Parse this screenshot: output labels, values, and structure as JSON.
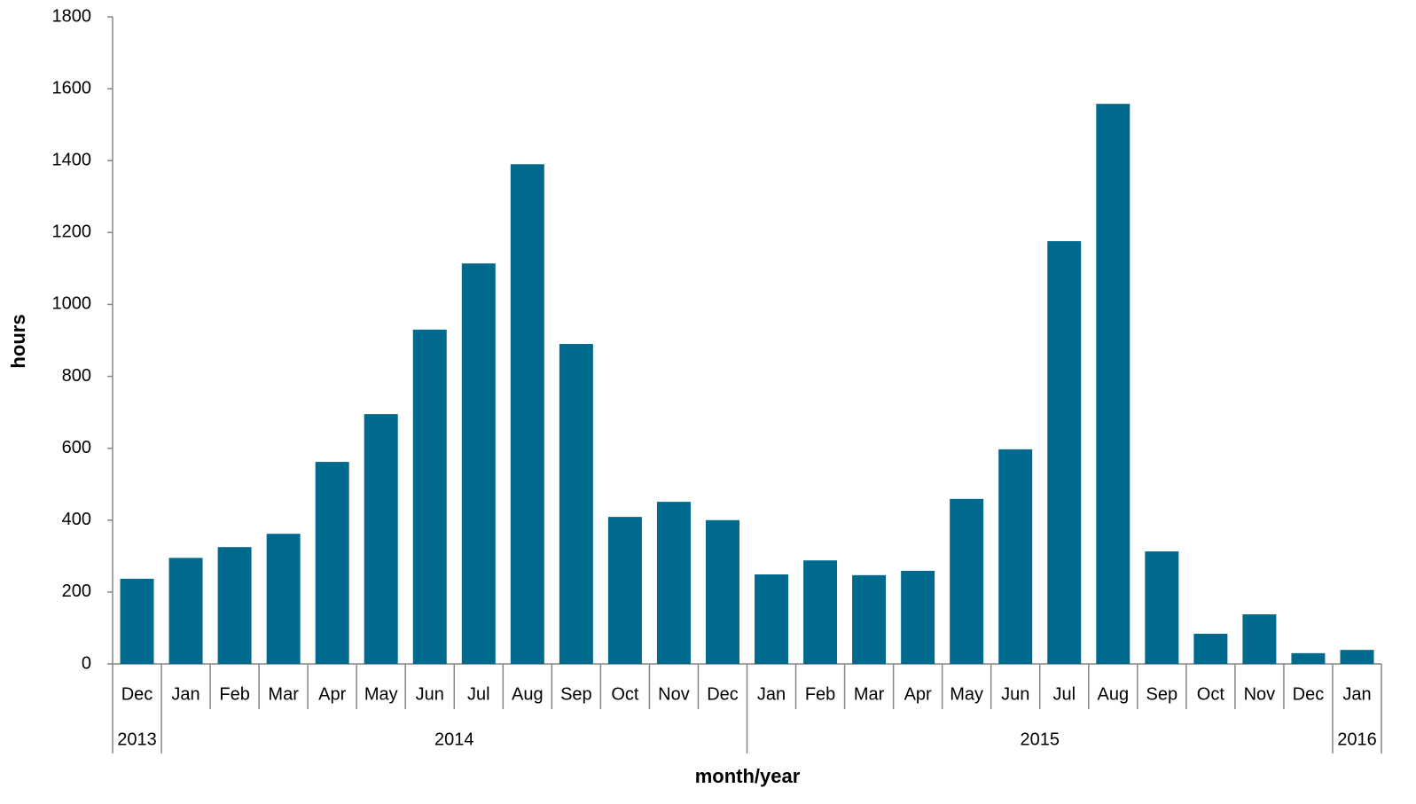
{
  "chart_data": {
    "type": "bar",
    "x_label": "month/year",
    "y_label": "hours",
    "categories": [
      "Dec",
      "Jan",
      "Feb",
      "Mar",
      "Apr",
      "May",
      "Jun",
      "Jul",
      "Aug",
      "Sep",
      "Oct",
      "Nov",
      "Dec",
      "Jan",
      "Feb",
      "Mar",
      "Apr",
      "May",
      "Jun",
      "Jul",
      "Aug",
      "Sep",
      "Oct",
      "Nov",
      "Dec",
      "Jan"
    ],
    "groups": [
      {
        "label": "2013",
        "span": 1
      },
      {
        "label": "2014",
        "span": 12
      },
      {
        "label": "2015",
        "span": 12
      },
      {
        "label": "2016",
        "span": 1
      }
    ],
    "values": [
      237,
      295,
      325,
      362,
      562,
      695,
      930,
      1114,
      1390,
      890,
      409,
      451,
      400,
      249,
      288,
      247,
      259,
      459,
      597,
      1176,
      1558,
      313,
      84,
      138,
      30,
      39
    ],
    "color": "#006a8e",
    "ylim": [
      0,
      1800
    ],
    "yticks": [
      0,
      200,
      400,
      600,
      800,
      1000,
      1200,
      1400,
      1600,
      1800
    ],
    "grid": false
  }
}
